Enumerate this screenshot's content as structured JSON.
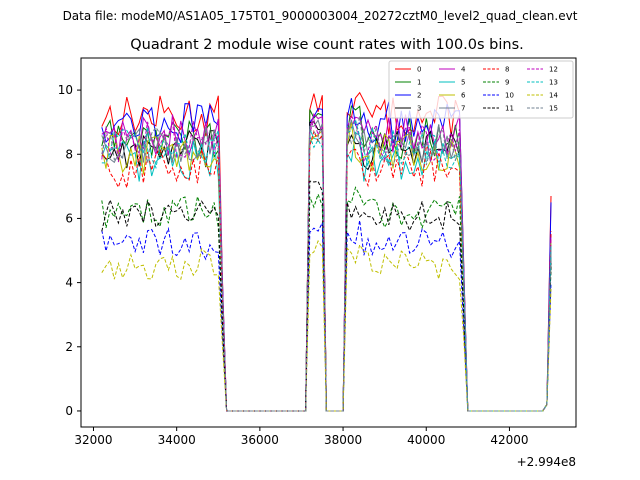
{
  "chart_data": {
    "type": "line",
    "suptitle": "Data file: modeM0/AS1A05_175T01_9000003004_20272cztM0_level2_quad_clean.evt",
    "title": "Quadrant 2 module wise count rates with 100.0s bins.",
    "xlabel": "",
    "ylabel": "",
    "x_offset_label": "+2.994e8",
    "xlim": [
      31700,
      43600
    ],
    "ylim": [
      -0.5,
      11.0
    ],
    "x_ticks": [
      32000,
      34000,
      36000,
      38000,
      40000,
      42000
    ],
    "y_ticks": [
      0,
      2,
      4,
      6,
      8,
      10
    ],
    "x_tick_labels": [
      "32000",
      "34000",
      "36000",
      "38000",
      "40000",
      "42000"
    ],
    "y_tick_labels": [
      "0",
      "2",
      "4",
      "6",
      "8",
      "10"
    ],
    "legend_position": "top-right",
    "x_start": 32200,
    "x_step": 100,
    "gaps": [
      {
        "from": 35200,
        "to": 37100
      },
      {
        "from": 37600,
        "to": 38000
      },
      {
        "from": 41000,
        "to": 42900
      }
    ],
    "end_point": 43000,
    "series": [
      {
        "name": "0",
        "color": "#ff0000",
        "style": "solid",
        "level": 9.2,
        "peak": 9.6,
        "end": 6.7
      },
      {
        "name": "1",
        "color": "#008000",
        "style": "solid",
        "level": 8.5,
        "peak": 9.3,
        "end": 5.2
      },
      {
        "name": "2",
        "color": "#0000ff",
        "style": "solid",
        "level": 9.0,
        "peak": 9.2,
        "end": 6.5
      },
      {
        "name": "3",
        "color": "#000000",
        "style": "solid",
        "level": 8.1,
        "peak": 8.9,
        "end": 4.8
      },
      {
        "name": "4",
        "color": "#bf00bf",
        "style": "solid",
        "level": 8.6,
        "peak": 9.0,
        "end": 5.5
      },
      {
        "name": "5",
        "color": "#00bfbf",
        "style": "solid",
        "level": 7.8,
        "peak": 8.7,
        "end": 5.0
      },
      {
        "name": "6",
        "color": "#bfbf00",
        "style": "solid",
        "level": 8.0,
        "peak": 8.6,
        "end": 5.3
      },
      {
        "name": "7",
        "color": "#708090",
        "style": "solid",
        "level": 8.3,
        "peak": 8.8,
        "end": 5.1
      },
      {
        "name": "8",
        "color": "#ff0000",
        "style": "dashed",
        "level": 7.6,
        "peak": 8.5,
        "end": 5.6
      },
      {
        "name": "9",
        "color": "#008000",
        "style": "dashed",
        "level": 6.2,
        "peak": 6.6,
        "end": 4.5
      },
      {
        "name": "10",
        "color": "#0000ff",
        "style": "dashed",
        "level": 5.2,
        "peak": 5.8,
        "end": 4.0
      },
      {
        "name": "11",
        "color": "#000000",
        "style": "dashed",
        "level": 6.1,
        "peak": 7.1,
        "end": 4.6
      },
      {
        "name": "12",
        "color": "#bf00bf",
        "style": "dashed",
        "level": 8.4,
        "peak": 8.9,
        "end": 5.4
      },
      {
        "name": "13",
        "color": "#00bfbf",
        "style": "dashed",
        "level": 8.2,
        "peak": 8.5,
        "end": 5.2
      },
      {
        "name": "14",
        "color": "#bfbf00",
        "style": "dashed",
        "level": 4.6,
        "peak": 5.1,
        "end": 3.8
      },
      {
        "name": "15",
        "color": "#708090",
        "style": "dashed",
        "level": 8.3,
        "peak": 8.7,
        "end": 5.0
      }
    ]
  }
}
